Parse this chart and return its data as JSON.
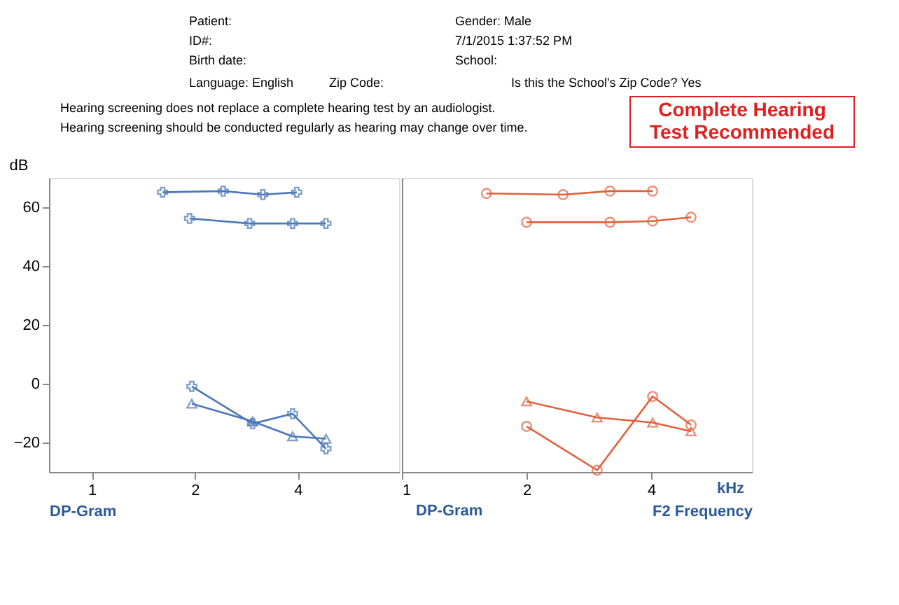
{
  "chart_data": [
    {
      "type": "line",
      "xlabel": "DP-Gram",
      "ylabel": "dB",
      "log": "x",
      "xlim": [
        0.75,
        7.9
      ],
      "ylim": [
        -30,
        70
      ],
      "xticks": [
        1,
        2,
        4
      ],
      "yticks": [
        -20,
        0,
        20,
        40,
        60
      ],
      "grid": false,
      "line_style": "solid",
      "annotations": [
        "Patient:",
        "ID#:",
        "Birth date:",
        "Language:  English",
        "Gender:  Male",
        "7/1/2015 1:37:52 PM",
        "School:",
        "Zip Code:",
        "Is this the School's Zip Code?  Yes",
        "Hearing screening does not replace a complete hearing test by an audiologist.",
        "Hearing screening should be conducted regularly as hearing may change over time.",
        "Complete Hearing",
        "Test Recommended"
      ],
      "series": [
        {
          "color": "#4a78b8",
          "marker": "cross",
          "x": [
            1.61,
            2.42,
            3.16,
            3.97
          ],
          "values": [
            65.1,
            65.5,
            64.3,
            65.1
          ]
        },
        {
          "color": "#4a78b8",
          "marker": "cross",
          "x": [
            1.93,
            2.89,
            3.86,
            4.83
          ],
          "values": [
            56.2,
            54.5,
            54.5,
            54.5
          ]
        },
        {
          "color": "#4a78b8",
          "marker": "cross",
          "x": [
            1.96,
            2.95,
            3.86,
            4.83
          ],
          "values": [
            -0.9,
            -13.6,
            -10.2,
            -22.1
          ]
        },
        {
          "color": "#4a78b8",
          "marker": "triangle",
          "x": [
            1.96,
            2.95,
            3.86,
            4.83
          ],
          "values": [
            -6.8,
            -12.8,
            -17.9,
            -18.7
          ]
        }
      ]
    },
    {
      "type": "line",
      "xlabel": "F2 Frequency",
      "log": "x",
      "xlim": [
        1,
        7
      ],
      "ylim": [
        -30,
        70
      ],
      "xticks": [
        1,
        2,
        4
      ],
      "yticks": [
        -20,
        0,
        20,
        40,
        60
      ],
      "tick_labels": "x",
      "grid": false,
      "line_style": "solid",
      "annotations": [
        "kHz",
        "DP-Gram"
      ],
      "series": [
        {
          "color": "#e0603c",
          "marker": "circle",
          "x": [
            1.6,
            2.45,
            3.18,
            4.03
          ],
          "values": [
            64.7,
            64.3,
            65.5,
            65.5
          ]
        },
        {
          "color": "#e0603c",
          "marker": "circle",
          "x": [
            2.0,
            3.18,
            4.03,
            4.99
          ],
          "values": [
            54.9,
            54.9,
            55.3,
            56.6
          ]
        },
        {
          "color": "#e0603c",
          "marker": "circle",
          "x": [
            2.0,
            2.96,
            4.03,
            4.99
          ],
          "values": [
            -14.5,
            -29.4,
            -4.3,
            -14.0
          ]
        },
        {
          "color": "#e0603c",
          "marker": "triangle",
          "x": [
            2.0,
            2.96,
            4.03,
            4.99
          ],
          "values": [
            -6.0,
            -11.5,
            -13.2,
            -16.2
          ]
        }
      ]
    }
  ]
}
